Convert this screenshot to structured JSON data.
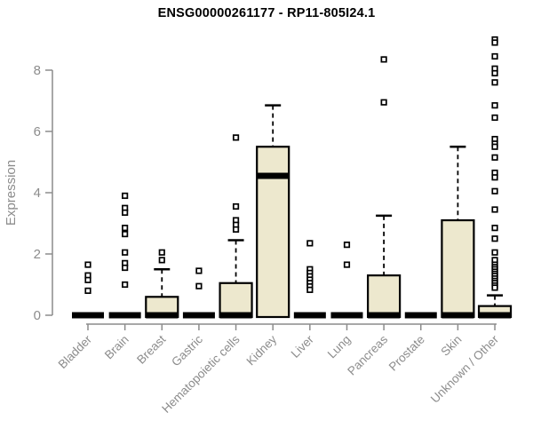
{
  "chart_data": {
    "type": "boxplot",
    "title": "ENSG00000261177 - RP11-805I24.1",
    "ylabel": "Expression",
    "xlabel": "",
    "ylim": [
      0,
      9.3
    ],
    "yticks": [
      0,
      2,
      4,
      6,
      8
    ],
    "grid": false,
    "legend": false,
    "box_fill_color": "#EDE8CE",
    "box_border_color": "#000000",
    "median_color": "#000000",
    "outlier_fill_color": "#ffffff",
    "axis_color": "#8c8c8c",
    "tick_label_color": "#8c8c8c",
    "title_color": "#000000",
    "categories": [
      "Bladder",
      "Brain",
      "Breast",
      "Gastric",
      "Hematopoietic cells",
      "Kidney",
      "Liver",
      "Lung",
      "Pancreas",
      "Prostate",
      "Skin",
      "Unknown / Other"
    ],
    "boxes": [
      {
        "category": "Bladder",
        "q1": 0,
        "median": 0,
        "q3": 0,
        "whisker_low": 0,
        "whisker_high": 0,
        "outliers": [
          1.65,
          1.3,
          1.15,
          0.8
        ]
      },
      {
        "category": "Brain",
        "q1": 0,
        "median": 0,
        "q3": 0,
        "whisker_low": 0,
        "whisker_high": 0,
        "outliers": [
          3.9,
          3.5,
          3.35,
          2.85,
          2.65,
          2.05,
          1.7,
          1.55,
          1.0
        ]
      },
      {
        "category": "Breast",
        "q1": 0,
        "median": 0,
        "q3": 0.6,
        "whisker_low": 0,
        "whisker_high": 1.5,
        "outliers": [
          2.05,
          1.8
        ]
      },
      {
        "category": "Gastric",
        "q1": 0,
        "median": 0,
        "q3": 0,
        "whisker_low": 0,
        "whisker_high": 0,
        "outliers": [
          1.45,
          0.95
        ]
      },
      {
        "category": "Hematopoietic cells",
        "q1": 0,
        "median": 0,
        "q3": 1.05,
        "whisker_low": 0,
        "whisker_high": 2.45,
        "outliers": [
          5.8,
          3.55,
          3.1,
          2.95,
          2.8
        ]
      },
      {
        "category": "Kidney",
        "q1": 0,
        "median": 4.55,
        "q3": 5.5,
        "whisker_low": 0,
        "whisker_high": 6.85,
        "outliers": []
      },
      {
        "category": "Liver",
        "q1": 0,
        "median": 0,
        "q3": 0,
        "whisker_low": 0,
        "whisker_high": 0,
        "outliers": [
          2.35,
          1.5,
          1.38,
          1.27,
          1.16,
          1.05,
          0.94,
          0.83
        ]
      },
      {
        "category": "Lung",
        "q1": 0,
        "median": 0,
        "q3": 0,
        "whisker_low": 0,
        "whisker_high": 0,
        "outliers": [
          2.3,
          1.65
        ]
      },
      {
        "category": "Pancreas",
        "q1": 0,
        "median": 0,
        "q3": 1.3,
        "whisker_low": 0,
        "whisker_high": 3.25,
        "outliers": [
          8.35,
          6.95
        ]
      },
      {
        "category": "Prostate",
        "q1": 0,
        "median": 0,
        "q3": 0,
        "whisker_low": 0,
        "whisker_high": 0,
        "outliers": []
      },
      {
        "category": "Skin",
        "q1": 0,
        "median": 0,
        "q3": 3.1,
        "whisker_low": 0,
        "whisker_high": 5.5,
        "outliers": []
      },
      {
        "category": "Unknown / Other",
        "q1": 0,
        "median": 0,
        "q3": 0.3,
        "whisker_low": 0,
        "whisker_high": 0.65,
        "outliers": [
          9.0,
          8.9,
          8.45,
          8.05,
          7.9,
          7.6,
          6.85,
          6.45,
          5.75,
          5.6,
          5.5,
          5.15,
          4.65,
          4.5,
          4.05,
          3.45,
          2.85,
          2.5,
          2.05,
          1.8,
          1.65,
          1.57,
          1.5,
          1.42,
          1.35,
          1.28,
          1.2,
          1.12,
          1.05,
          0.97,
          0.9
        ]
      }
    ]
  }
}
